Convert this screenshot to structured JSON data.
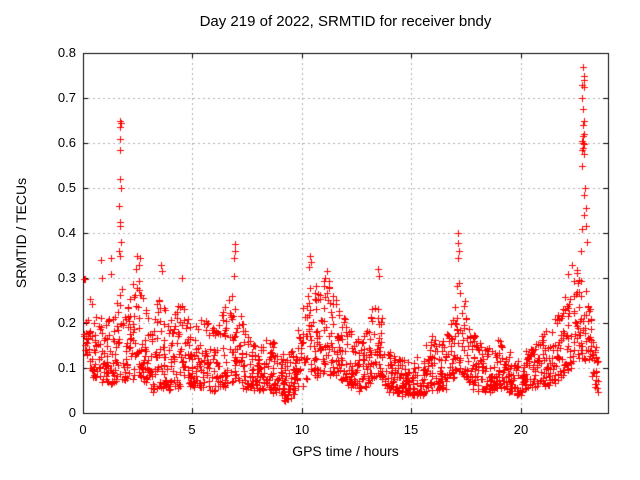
{
  "chart_data": {
    "type": "scatter",
    "title": "Day 219 of 2022, SRMTID for receiver bndy",
    "xlabel": "GPS time / hours",
    "ylabel": "SRMTID / TECUs",
    "xlim": [
      0,
      24
    ],
    "ylim": [
      0,
      0.8
    ],
    "xtick_values": [
      0,
      5,
      10,
      15,
      20
    ],
    "xtick_labels": [
      "0",
      "5",
      "10",
      "15",
      "20"
    ],
    "ytick_values": [
      0,
      0.1,
      0.2,
      0.3,
      0.4,
      0.5,
      0.6,
      0.7,
      0.8
    ],
    "ytick_labels": [
      "0",
      "0.1",
      "0.2",
      "0.3",
      "0.4",
      "0.5",
      "0.6",
      "0.7",
      "0.8"
    ],
    "grid": true,
    "grid_color": "#b0b0b0",
    "border_color": "#000000",
    "marker": "plus",
    "marker_size": 7,
    "marker_color": "#ff0000",
    "legend": "none",
    "seed": 20220807,
    "points_per_hour": 78,
    "band_envelope": [
      [
        0.0,
        0.17,
        0.33
      ],
      [
        0.25,
        0.1,
        0.28
      ],
      [
        0.5,
        0.08,
        0.24
      ],
      [
        0.8,
        0.07,
        0.22
      ],
      [
        1.1,
        0.06,
        0.2
      ],
      [
        1.45,
        0.07,
        0.25
      ],
      [
        1.72,
        0.08,
        0.3
      ],
      [
        2.1,
        0.07,
        0.26
      ],
      [
        2.45,
        0.08,
        0.31
      ],
      [
        2.8,
        0.07,
        0.25
      ],
      [
        3.15,
        0.05,
        0.18
      ],
      [
        3.55,
        0.06,
        0.29
      ],
      [
        3.95,
        0.05,
        0.2
      ],
      [
        4.5,
        0.06,
        0.26
      ],
      [
        5.0,
        0.05,
        0.18
      ],
      [
        5.5,
        0.06,
        0.22
      ],
      [
        6.0,
        0.05,
        0.19
      ],
      [
        6.5,
        0.06,
        0.24
      ],
      [
        6.95,
        0.08,
        0.33
      ],
      [
        7.3,
        0.06,
        0.2
      ],
      [
        7.8,
        0.05,
        0.16
      ],
      [
        8.3,
        0.05,
        0.17
      ],
      [
        8.8,
        0.04,
        0.15
      ],
      [
        9.3,
        0.03,
        0.12
      ],
      [
        9.7,
        0.04,
        0.15
      ],
      [
        10.1,
        0.06,
        0.26
      ],
      [
        10.45,
        0.09,
        0.33
      ],
      [
        10.8,
        0.08,
        0.27
      ],
      [
        11.15,
        0.09,
        0.31
      ],
      [
        11.5,
        0.09,
        0.29
      ],
      [
        11.9,
        0.07,
        0.23
      ],
      [
        12.3,
        0.06,
        0.18
      ],
      [
        12.7,
        0.05,
        0.16
      ],
      [
        13.1,
        0.06,
        0.2
      ],
      [
        13.5,
        0.09,
        0.3
      ],
      [
        13.85,
        0.06,
        0.17
      ],
      [
        14.2,
        0.04,
        0.13
      ],
      [
        14.6,
        0.04,
        0.12
      ],
      [
        15.0,
        0.04,
        0.12
      ],
      [
        15.5,
        0.04,
        0.14
      ],
      [
        15.9,
        0.05,
        0.17
      ],
      [
        16.3,
        0.05,
        0.16
      ],
      [
        16.7,
        0.06,
        0.19
      ],
      [
        17.0,
        0.08,
        0.24
      ],
      [
        17.15,
        0.1,
        0.33
      ],
      [
        17.5,
        0.08,
        0.24
      ],
      [
        17.8,
        0.06,
        0.18
      ],
      [
        18.2,
        0.05,
        0.16
      ],
      [
        18.6,
        0.05,
        0.15
      ],
      [
        19.0,
        0.06,
        0.17
      ],
      [
        19.4,
        0.05,
        0.14
      ],
      [
        19.9,
        0.04,
        0.12
      ],
      [
        20.3,
        0.05,
        0.14
      ],
      [
        20.7,
        0.06,
        0.17
      ],
      [
        21.1,
        0.06,
        0.19
      ],
      [
        21.5,
        0.07,
        0.21
      ],
      [
        21.9,
        0.08,
        0.24
      ],
      [
        22.3,
        0.1,
        0.29
      ],
      [
        22.7,
        0.12,
        0.33
      ],
      [
        23.0,
        0.11,
        0.3
      ],
      [
        23.25,
        0.08,
        0.22
      ],
      [
        23.45,
        0.05,
        0.16
      ],
      [
        23.6,
        0.04,
        0.12
      ]
    ],
    "outlier_points": [
      [
        0.82,
        0.34
      ],
      [
        0.85,
        0.3
      ],
      [
        1.28,
        0.31
      ],
      [
        1.3,
        0.345
      ],
      [
        1.68,
        0.65
      ],
      [
        1.72,
        0.645
      ],
      [
        1.7,
        0.635
      ],
      [
        1.68,
        0.61
      ],
      [
        1.71,
        0.585
      ],
      [
        1.69,
        0.52
      ],
      [
        1.72,
        0.5
      ],
      [
        1.66,
        0.46
      ],
      [
        1.68,
        0.425
      ],
      [
        1.71,
        0.415
      ],
      [
        1.74,
        0.38
      ],
      [
        1.64,
        0.36
      ],
      [
        1.7,
        0.35
      ],
      [
        2.45,
        0.35
      ],
      [
        2.6,
        0.345
      ],
      [
        2.55,
        0.33
      ],
      [
        2.4,
        0.32
      ],
      [
        3.55,
        0.33
      ],
      [
        3.6,
        0.315
      ],
      [
        4.53,
        0.3
      ],
      [
        6.93,
        0.375
      ],
      [
        6.97,
        0.36
      ],
      [
        6.9,
        0.345
      ],
      [
        10.38,
        0.35
      ],
      [
        10.43,
        0.335
      ],
      [
        10.34,
        0.325
      ],
      [
        11.15,
        0.315
      ],
      [
        11.05,
        0.3
      ],
      [
        13.48,
        0.32
      ],
      [
        13.52,
        0.305
      ],
      [
        17.15,
        0.4
      ],
      [
        17.13,
        0.378
      ],
      [
        17.17,
        0.36
      ],
      [
        17.13,
        0.345
      ],
      [
        22.35,
        0.33
      ],
      [
        22.15,
        0.31
      ],
      [
        22.85,
        0.77
      ],
      [
        22.9,
        0.75
      ],
      [
        22.88,
        0.74
      ],
      [
        22.82,
        0.73
      ],
      [
        22.92,
        0.725
      ],
      [
        22.8,
        0.7
      ],
      [
        22.86,
        0.675
      ],
      [
        22.9,
        0.65
      ],
      [
        22.84,
        0.64
      ],
      [
        22.88,
        0.62
      ],
      [
        22.86,
        0.615
      ],
      [
        22.82,
        0.605
      ],
      [
        22.87,
        0.6
      ],
      [
        22.91,
        0.598
      ],
      [
        22.85,
        0.59
      ],
      [
        22.8,
        0.585
      ],
      [
        22.89,
        0.575
      ],
      [
        22.83,
        0.55
      ],
      [
        22.95,
        0.5
      ],
      [
        22.9,
        0.485
      ],
      [
        23.0,
        0.455
      ],
      [
        22.92,
        0.44
      ],
      [
        22.98,
        0.415
      ],
      [
        22.8,
        0.41
      ],
      [
        23.05,
        0.38
      ],
      [
        22.75,
        0.36
      ]
    ]
  }
}
